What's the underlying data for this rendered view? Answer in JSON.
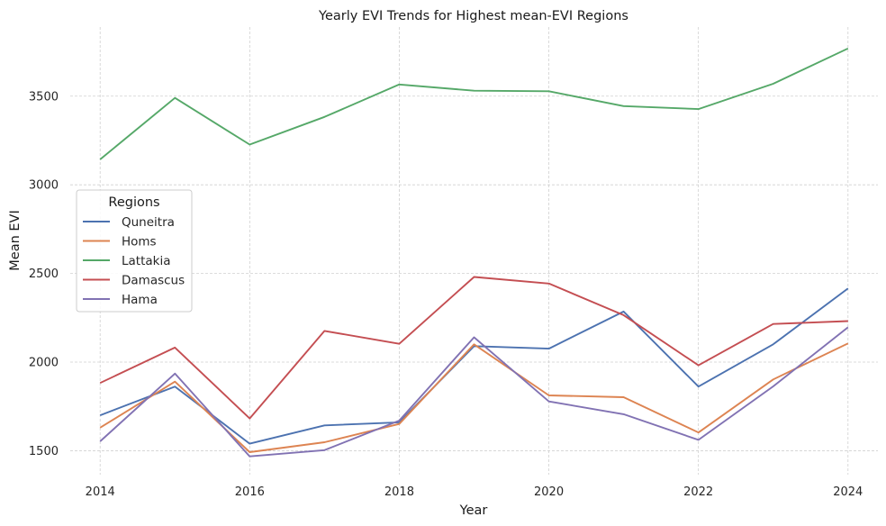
{
  "chart_data": {
    "type": "line",
    "title": "Yearly EVI Trends for Highest mean-EVI Regions",
    "xlabel": "Year",
    "ylabel": "Mean EVI",
    "x": [
      2014,
      2015,
      2016,
      2017,
      2018,
      2019,
      2020,
      2021,
      2022,
      2023,
      2024
    ],
    "xlim": [
      2013.6,
      2024.4
    ],
    "ylim": [
      1365,
      3890
    ],
    "xticks": [
      2014,
      2016,
      2018,
      2020,
      2022,
      2024
    ],
    "yticks": [
      1500,
      2000,
      2500,
      3000,
      3500
    ],
    "grid": true,
    "legend_title": "Regions",
    "legend_position": "center-left",
    "series": [
      {
        "name": "Quneitra",
        "color": "#4c72b0",
        "values": [
          1700,
          1862,
          1540,
          1643,
          1660,
          2090,
          2076,
          2285,
          1862,
          2100,
          2415
        ]
      },
      {
        "name": "Homs",
        "color": "#dd8452",
        "values": [
          1630,
          1890,
          1492,
          1548,
          1651,
          2100,
          1812,
          1802,
          1603,
          1902,
          2105
        ]
      },
      {
        "name": "Lattakia",
        "color": "#55a868",
        "values": [
          3143,
          3490,
          3227,
          3383,
          3566,
          3531,
          3528,
          3444,
          3427,
          3570,
          3769
        ]
      },
      {
        "name": "Damascus",
        "color": "#c44e52",
        "values": [
          1882,
          2082,
          1682,
          2176,
          2103,
          2480,
          2443,
          2265,
          1982,
          2215,
          2231
        ]
      },
      {
        "name": "Hama",
        "color": "#8172b3",
        "values": [
          1553,
          1935,
          1468,
          1503,
          1670,
          2140,
          1778,
          1706,
          1561,
          1863,
          2196
        ]
      }
    ]
  }
}
